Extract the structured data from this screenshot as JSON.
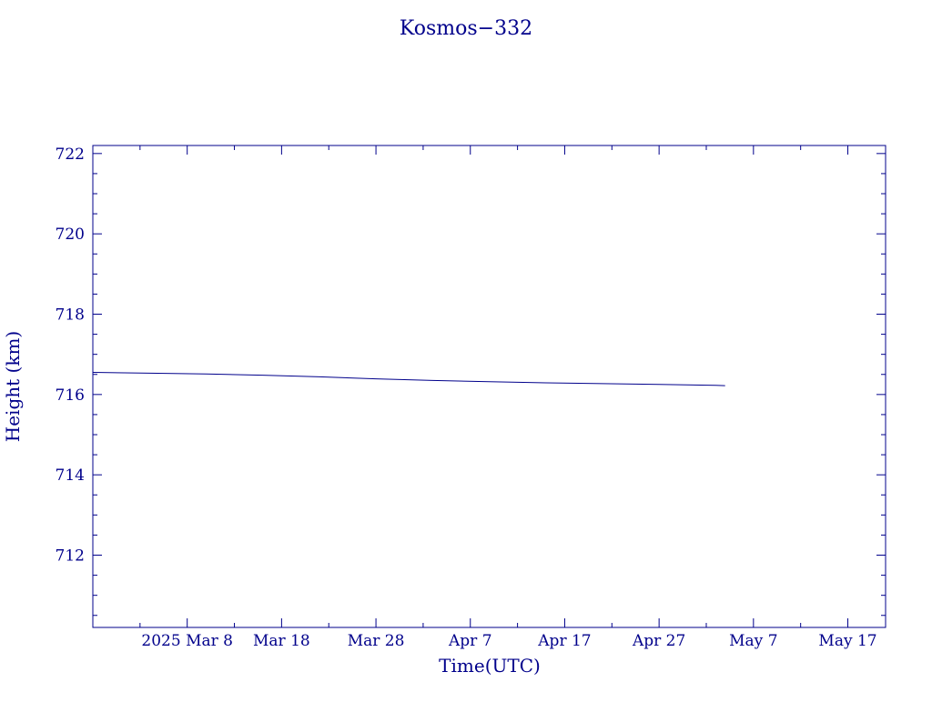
{
  "chart_data": {
    "type": "line",
    "title": "Kosmos−332",
    "xlabel": "Time(UTC)",
    "ylabel": "Height (km)",
    "x_tick_labels": [
      "2025 Mar  8",
      "Mar 18",
      "Mar 28",
      "Apr  7",
      "Apr 17",
      "Apr 27",
      "May  7",
      "May 17"
    ],
    "x_tick_dates": [
      "2025-03-08",
      "2025-03-18",
      "2025-03-28",
      "2025-04-07",
      "2025-04-17",
      "2025-04-27",
      "2025-05-07",
      "2025-05-17"
    ],
    "y_ticks": [
      712,
      714,
      716,
      718,
      720,
      722
    ],
    "xlim": [
      "2025-02-26",
      "2025-05-21"
    ],
    "ylim": [
      710.2,
      722.2
    ],
    "grid": false,
    "color": "#00008b",
    "series": [
      {
        "x": [
          "2025-02-26",
          "2025-03-04",
          "2025-03-10",
          "2025-03-16",
          "2025-03-22",
          "2025-03-28",
          "2025-04-03",
          "2025-04-09",
          "2025-04-15",
          "2025-04-21",
          "2025-04-27",
          "2025-05-03",
          "2025-05-04"
        ],
        "y": [
          716.55,
          716.53,
          716.51,
          716.48,
          716.44,
          716.39,
          716.35,
          716.32,
          716.29,
          716.27,
          716.25,
          716.23,
          716.22
        ]
      }
    ]
  }
}
